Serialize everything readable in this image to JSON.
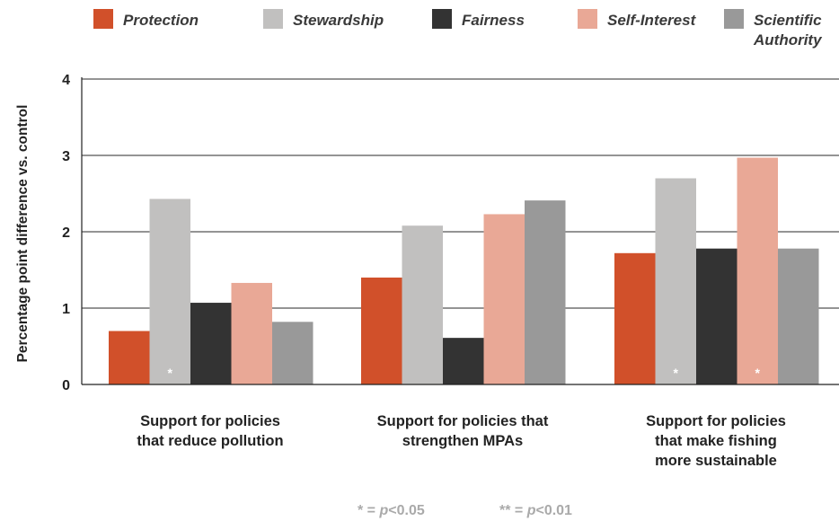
{
  "chart_data": {
    "type": "bar",
    "title": "",
    "xlabel": "",
    "ylabel": "Percentage point difference vs. control",
    "ylim": [
      0,
      4
    ],
    "yticks": [
      "0",
      "1",
      "2",
      "3",
      "4"
    ],
    "grid": true,
    "legend_position": "top",
    "categories": [
      [
        "Support for policies",
        "that reduce pollution"
      ],
      [
        "Support for policies that",
        "strengthen MPAs"
      ],
      [
        "Support for policies",
        "that make fishing",
        "more sustainable"
      ]
    ],
    "series": [
      {
        "name": "Protection",
        "color": "#d1502a",
        "values": [
          0.7,
          1.4,
          1.72
        ]
      },
      {
        "name": "Stewardship",
        "color": "#c1c0bf",
        "values": [
          2.43,
          2.08,
          2.7
        ]
      },
      {
        "name": "Fairness",
        "color": "#333333",
        "values": [
          1.07,
          0.61,
          1.78
        ]
      },
      {
        "name": "Self-Interest",
        "color": "#e9a896",
        "values": [
          1.33,
          2.23,
          2.97
        ]
      },
      {
        "name": "Scientific Authority",
        "color": "#999999",
        "values": [
          0.82,
          2.41,
          1.78
        ]
      }
    ],
    "significance": [
      {
        "category": 0,
        "series": 1,
        "mark": "*"
      },
      {
        "category": 2,
        "series": 1,
        "mark": "*"
      },
      {
        "category": 2,
        "series": 3,
        "mark": "*"
      }
    ],
    "legend_labels": [
      [
        "Protection"
      ],
      [
        "Stewardship"
      ],
      [
        "Fairness"
      ],
      [
        "Self-Interest"
      ],
      [
        "Scientific",
        "Authority"
      ]
    ],
    "footnotes": {
      "p05": {
        "stars": "*",
        "eq": " = ",
        "p": "p",
        "value": "<0.05"
      },
      "p01": {
        "stars": "**",
        "eq": " = ",
        "p": "p",
        "value": "<0.01"
      }
    }
  }
}
